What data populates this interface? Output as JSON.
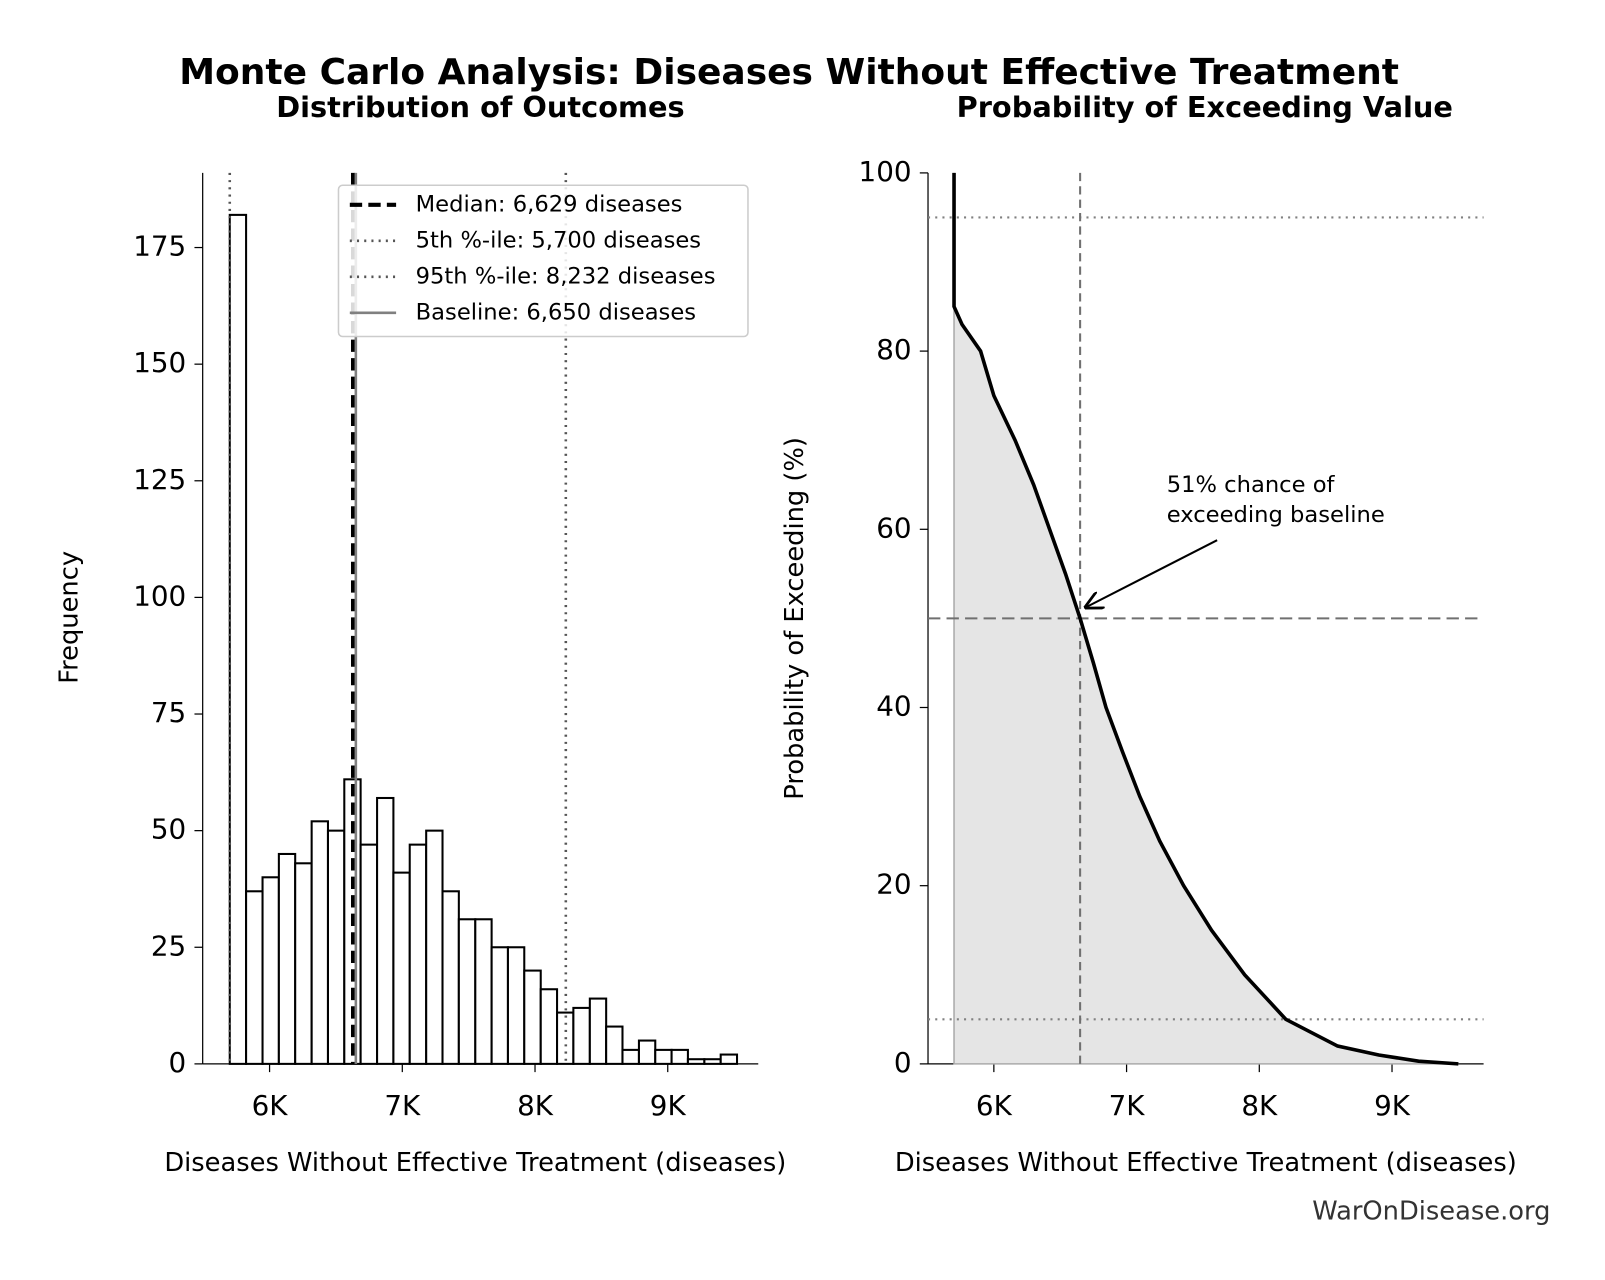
{
  "title": "Monte Carlo Analysis: Diseases Without Effective Treatment",
  "watermark": "WarOnDisease.org",
  "chart_data": [
    {
      "type": "histogram",
      "title": "Distribution of Outcomes",
      "xlabel": "Diseases Without Effective Treatment (diseases)",
      "ylabel": "Frequency",
      "bins": [
        5700,
        5823,
        5947,
        6070,
        6193,
        6317,
        6440,
        6563,
        6686,
        6810,
        6933,
        7056,
        7180,
        7303,
        7426,
        7550,
        7673,
        7796,
        7919,
        8043,
        8166,
        8289,
        8413,
        8536,
        8659,
        8783,
        8906,
        9029,
        9152,
        9276,
        9399,
        9522
      ],
      "values": [
        182,
        37,
        40,
        45,
        43,
        52,
        50,
        61,
        47,
        57,
        41,
        47,
        50,
        37,
        31,
        31,
        25,
        25,
        20,
        16,
        11,
        12,
        14,
        8,
        3,
        5,
        3,
        3,
        1,
        1,
        2
      ],
      "color": "#ffffff",
      "xlim": [
        5496,
        9682
      ],
      "xticks": [
        {
          "value": 6000,
          "label": "6K"
        },
        {
          "value": 7000,
          "label": "7K"
        },
        {
          "value": 8000,
          "label": "8K"
        },
        {
          "value": 9000,
          "label": "9K"
        }
      ],
      "ylim": [
        0,
        191
      ],
      "yticks": [
        0,
        25,
        50,
        75,
        100,
        125,
        150,
        175
      ],
      "legend": "upper right",
      "reference_lines": [
        {
          "name": "Median: 6,629 diseases",
          "value": 6629,
          "style": "dashed",
          "color": "#000000"
        },
        {
          "name": "5th %-ile: 5,700 diseases",
          "value": 5700,
          "style": "dotted",
          "color": "#555555"
        },
        {
          "name": "95th %-ile: 8,232 diseases",
          "value": 8232,
          "style": "dotted",
          "color": "#555555"
        },
        {
          "name": "Baseline: 6,650 diseases",
          "value": 6650,
          "style": "solid",
          "color": "#808080"
        }
      ]
    },
    {
      "type": "line",
      "title": "Probability of Exceeding Value",
      "xlabel": "Diseases Without Effective Treatment (diseases)",
      "ylabel": "Probability of Exceeding (%)",
      "x": [
        5700,
        5700,
        5760,
        5900,
        6000,
        6160,
        6300,
        6420,
        6540,
        6650,
        6750,
        6845,
        6970,
        7100,
        7250,
        7430,
        7640,
        7890,
        8200,
        8590,
        8900,
        9200,
        9500
      ],
      "values": [
        100,
        85,
        83,
        80,
        75,
        70,
        65,
        60,
        55,
        50,
        45,
        40,
        35,
        30,
        25,
        20,
        15,
        10,
        5,
        2,
        1,
        0.3,
        0
      ],
      "color": "#000000",
      "fill": "#e5e5e5",
      "xlim": [
        5504,
        9690
      ],
      "xticks": [
        {
          "value": 6000,
          "label": "6K"
        },
        {
          "value": 7000,
          "label": "7K"
        },
        {
          "value": 8000,
          "label": "8K"
        },
        {
          "value": 9000,
          "label": "9K"
        }
      ],
      "ylim": [
        0,
        100
      ],
      "yticks": [
        0,
        20,
        40,
        60,
        80,
        100
      ],
      "reference_lines": [
        {
          "axis": "y",
          "value": 95,
          "style": "dotted",
          "color": "#808080"
        },
        {
          "axis": "y",
          "value": 5,
          "style": "dotted",
          "color": "#808080"
        },
        {
          "axis": "y",
          "value": 50,
          "style": "dashed",
          "color": "#707070"
        },
        {
          "axis": "x",
          "value": 6650,
          "style": "dashed",
          "color": "#707070"
        }
      ],
      "annotation": [
        "51% chance of",
        "exceeding baseline"
      ]
    }
  ]
}
